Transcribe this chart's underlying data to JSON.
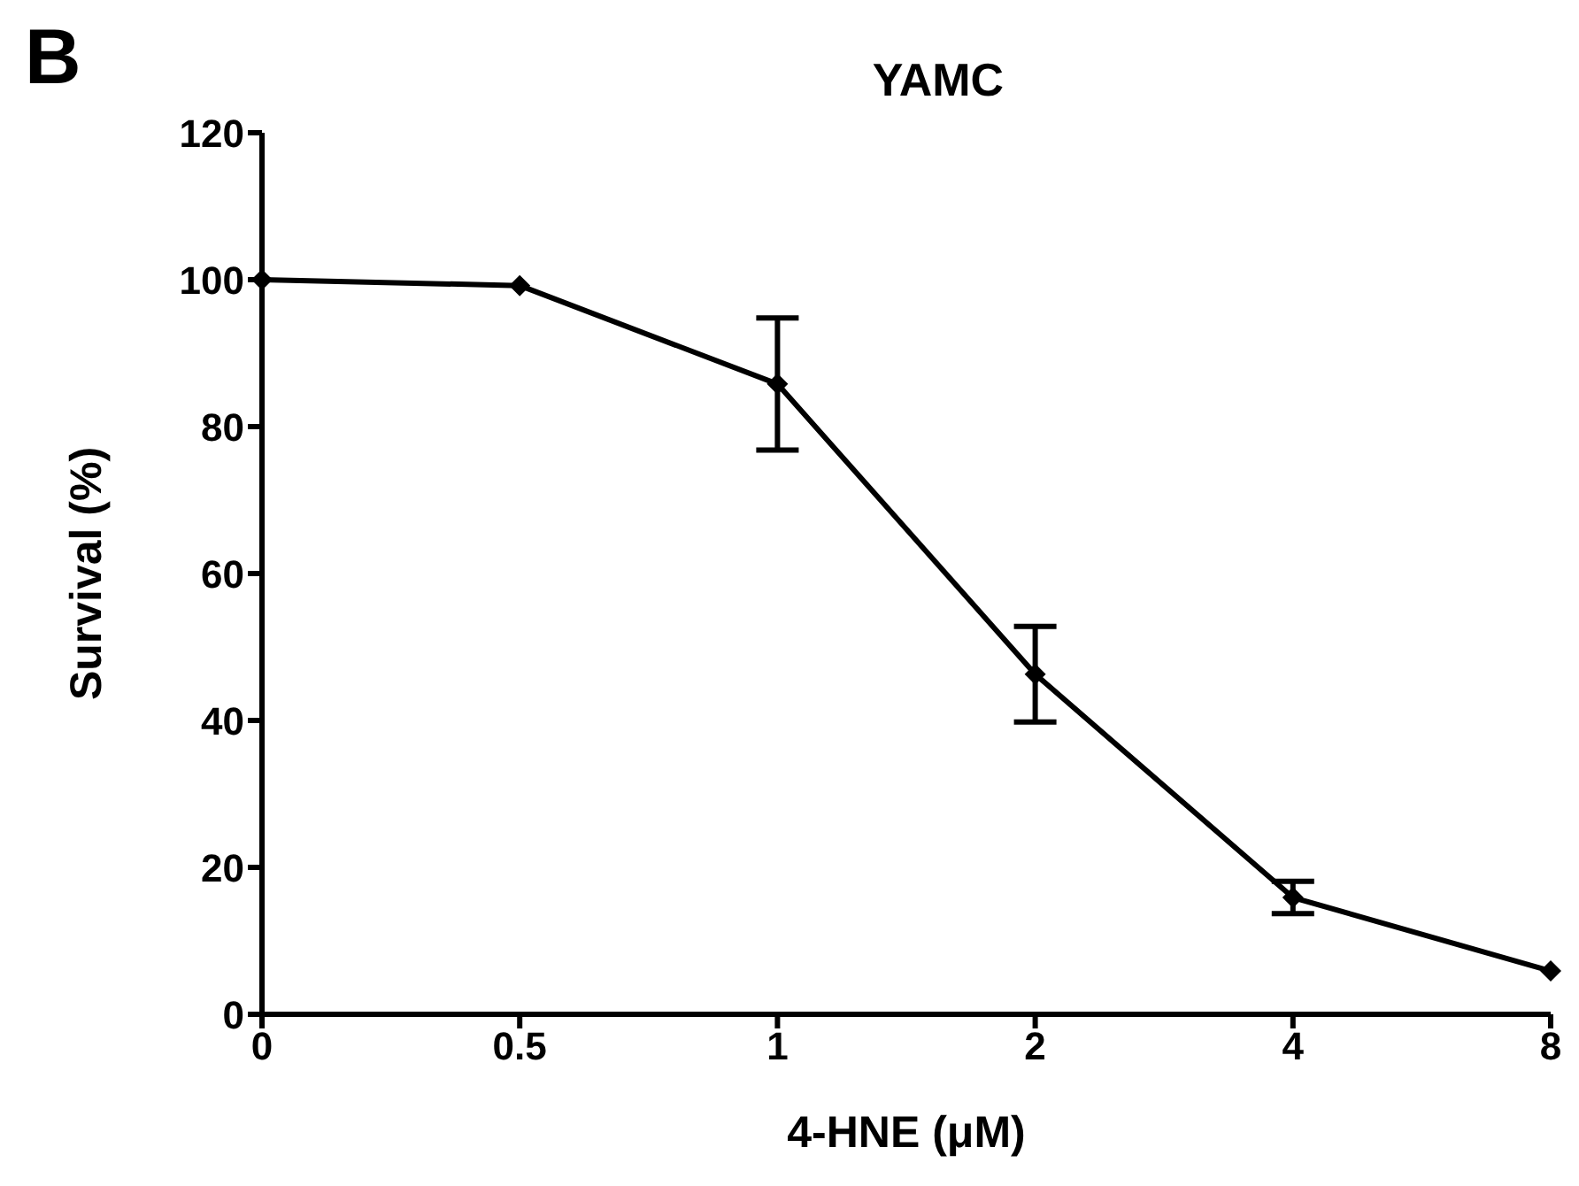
{
  "chart_data": {
    "type": "line",
    "title": "YAMC",
    "annotations": [
      "B"
    ],
    "xlabel": "4-HNE (μM)",
    "ylabel": "Survival (%)",
    "categories": [
      "0",
      "0.5",
      "1",
      "2",
      "4",
      "8"
    ],
    "series": [
      {
        "color": "#000000",
        "values": [
          100,
          99.2,
          85.8,
          46.3,
          15.9,
          5.9
        ],
        "errors": [
          null,
          null,
          9,
          6.5,
          2.2,
          null
        ]
      }
    ],
    "ylim": [
      0,
      120
    ],
    "yticks": [
      0,
      20,
      40,
      60,
      80,
      100,
      120
    ],
    "marker": "diamond",
    "line_style": "solid",
    "grid": false,
    "legend": false
  }
}
